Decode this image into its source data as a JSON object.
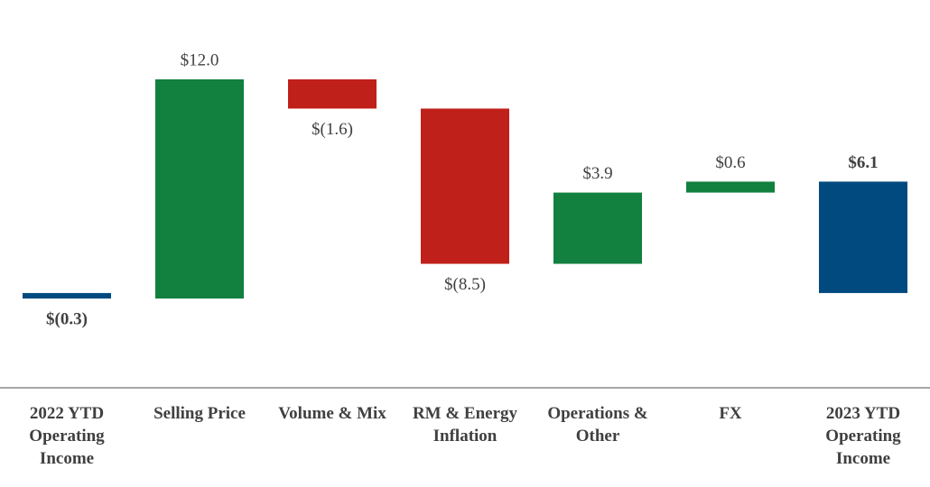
{
  "chart_data": {
    "type": "waterfall",
    "categories": [
      "2022 YTD Operating Income",
      "Selling Price",
      "Volume & Mix",
      "RM & Energy Inflation",
      "Operations & Other",
      "FX",
      "2023 YTD Operating Income"
    ],
    "values": [
      -0.3,
      12.0,
      -1.6,
      -8.5,
      3.9,
      0.6,
      6.1
    ],
    "value_labels": [
      "$(0.3)",
      "$12.0",
      "$(1.6)",
      "$(8.5)",
      "$3.9",
      "$0.6",
      "$6.1"
    ],
    "measures": [
      "absolute",
      "relative",
      "relative",
      "relative",
      "relative",
      "relative",
      "total"
    ],
    "increase_color": "#12803f",
    "decrease_color": "#c0201a",
    "total_color": "#004a80"
  }
}
